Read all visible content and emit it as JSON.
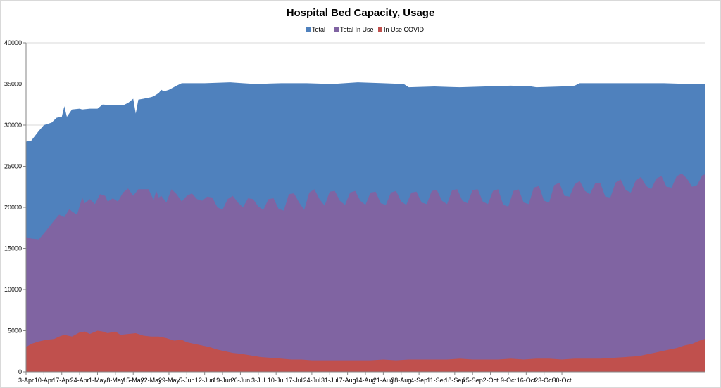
{
  "chart_data": {
    "type": "area",
    "title": "Hospital Bed Capacity, Usage",
    "xlabel": "",
    "ylabel": "",
    "ylim": [
      0,
      40000
    ],
    "yticks": [
      0,
      5000,
      10000,
      15000,
      20000,
      25000,
      30000,
      35000,
      40000
    ],
    "grid": "horizontal",
    "legend_position": "top-center",
    "x_tick_labels": [
      "3-Apr",
      "10-Apr",
      "17-Apr",
      "24-Apr",
      "1-May",
      "8-May",
      "15-May",
      "22-May",
      "29-May",
      "5-Jun",
      "12-Jun",
      "19-Jun",
      "26-Jun",
      "3-Jul",
      "10-Jul",
      "17-Jul",
      "24-Jul",
      "31-Jul",
      "7-Aug",
      "14-Aug",
      "21-Aug",
      "28-Aug",
      "4-Sep",
      "11-Sep",
      "18-Sep",
      "25-Sep",
      "2-Oct",
      "9-Oct",
      "16-Oct",
      "23-Oct",
      "30-Oct"
    ],
    "series": [
      {
        "name": "Total",
        "color": "#4f81bd",
        "points": [
          [
            0,
            28000
          ],
          [
            2,
            28100
          ],
          [
            5,
            29300
          ],
          [
            7,
            30000
          ],
          [
            10,
            30300
          ],
          [
            12,
            30900
          ],
          [
            14,
            31000
          ],
          [
            15,
            32300
          ],
          [
            16,
            31000
          ],
          [
            18,
            31900
          ],
          [
            21,
            32000
          ],
          [
            22,
            31900
          ],
          [
            25,
            32000
          ],
          [
            28,
            32000
          ],
          [
            30,
            32500
          ],
          [
            35,
            32400
          ],
          [
            38,
            32400
          ],
          [
            40,
            32700
          ],
          [
            42,
            33200
          ],
          [
            43,
            31400
          ],
          [
            44,
            33100
          ],
          [
            46,
            33200
          ],
          [
            49,
            33400
          ],
          [
            50,
            33500
          ],
          [
            52,
            33900
          ],
          [
            53,
            34300
          ],
          [
            54,
            34100
          ],
          [
            56,
            34300
          ],
          [
            59,
            34800
          ],
          [
            61,
            35100
          ],
          [
            63,
            35100
          ],
          [
            70,
            35100
          ],
          [
            80,
            35200
          ],
          [
            85,
            35100
          ],
          [
            90,
            35000
          ],
          [
            100,
            35100
          ],
          [
            110,
            35100
          ],
          [
            120,
            35000
          ],
          [
            130,
            35200
          ],
          [
            140,
            35100
          ],
          [
            148,
            35000
          ],
          [
            150,
            34600
          ],
          [
            160,
            34700
          ],
          [
            170,
            34600
          ],
          [
            180,
            34700
          ],
          [
            190,
            34800
          ],
          [
            198,
            34700
          ],
          [
            200,
            34600
          ],
          [
            210,
            34700
          ],
          [
            215,
            34800
          ],
          [
            217,
            35100
          ],
          [
            230,
            35100
          ],
          [
            240,
            35100
          ],
          [
            250,
            35100
          ],
          [
            260,
            35000
          ],
          [
            266,
            35000
          ]
        ]
      },
      {
        "name": "Total In Use",
        "color": "#8064a2",
        "points": [
          [
            0,
            16400
          ],
          [
            2,
            16200
          ],
          [
            5,
            16100
          ],
          [
            8,
            17200
          ],
          [
            11,
            18400
          ],
          [
            13,
            19100
          ],
          [
            15,
            18800
          ],
          [
            17,
            19800
          ],
          [
            18,
            19500
          ],
          [
            20,
            19100
          ],
          [
            22,
            21200
          ],
          [
            23,
            20500
          ],
          [
            25,
            21000
          ],
          [
            27,
            20400
          ],
          [
            29,
            21600
          ],
          [
            31,
            21400
          ],
          [
            32,
            20700
          ],
          [
            34,
            21100
          ],
          [
            36,
            20700
          ],
          [
            38,
            21800
          ],
          [
            40,
            22300
          ],
          [
            42,
            21400
          ],
          [
            44,
            22200
          ],
          [
            48,
            22200
          ],
          [
            50,
            20900
          ],
          [
            51,
            22000
          ],
          [
            52,
            21200
          ],
          [
            53,
            21400
          ],
          [
            55,
            20600
          ],
          [
            57,
            22200
          ],
          [
            59,
            21600
          ],
          [
            61,
            20700
          ],
          [
            63,
            21400
          ],
          [
            65,
            21700
          ],
          [
            67,
            21000
          ],
          [
            69,
            20800
          ],
          [
            71,
            21300
          ],
          [
            73,
            21200
          ],
          [
            75,
            20000
          ],
          [
            77,
            19700
          ],
          [
            79,
            21000
          ],
          [
            81,
            21400
          ],
          [
            83,
            20600
          ],
          [
            85,
            20000
          ],
          [
            87,
            21100
          ],
          [
            89,
            21000
          ],
          [
            91,
            20100
          ],
          [
            93,
            19700
          ],
          [
            95,
            21000
          ],
          [
            97,
            21100
          ],
          [
            99,
            19800
          ],
          [
            101,
            19600
          ],
          [
            103,
            21600
          ],
          [
            105,
            21700
          ],
          [
            107,
            20600
          ],
          [
            109,
            19700
          ],
          [
            111,
            21800
          ],
          [
            113,
            22200
          ],
          [
            115,
            21000
          ],
          [
            117,
            20200
          ],
          [
            119,
            21900
          ],
          [
            121,
            22000
          ],
          [
            123,
            20800
          ],
          [
            125,
            20300
          ],
          [
            127,
            21800
          ],
          [
            129,
            22000
          ],
          [
            131,
            20800
          ],
          [
            133,
            20300
          ],
          [
            135,
            21800
          ],
          [
            137,
            21900
          ],
          [
            139,
            20500
          ],
          [
            141,
            20300
          ],
          [
            143,
            21800
          ],
          [
            145,
            22000
          ],
          [
            147,
            20700
          ],
          [
            149,
            20300
          ],
          [
            151,
            21800
          ],
          [
            153,
            21900
          ],
          [
            155,
            20600
          ],
          [
            157,
            20400
          ],
          [
            159,
            22000
          ],
          [
            161,
            22100
          ],
          [
            163,
            20800
          ],
          [
            165,
            20400
          ],
          [
            167,
            22100
          ],
          [
            169,
            22200
          ],
          [
            171,
            20800
          ],
          [
            173,
            20500
          ],
          [
            175,
            22100
          ],
          [
            177,
            22200
          ],
          [
            179,
            20700
          ],
          [
            181,
            20400
          ],
          [
            183,
            22000
          ],
          [
            185,
            22200
          ],
          [
            187,
            20300
          ],
          [
            189,
            20100
          ],
          [
            191,
            22000
          ],
          [
            193,
            22200
          ],
          [
            195,
            20600
          ],
          [
            197,
            20400
          ],
          [
            199,
            22400
          ],
          [
            201,
            22600
          ],
          [
            203,
            20800
          ],
          [
            205,
            20600
          ],
          [
            207,
            22700
          ],
          [
            209,
            23000
          ],
          [
            211,
            21400
          ],
          [
            213,
            21300
          ],
          [
            215,
            22800
          ],
          [
            217,
            23200
          ],
          [
            219,
            22000
          ],
          [
            221,
            21600
          ],
          [
            223,
            22900
          ],
          [
            225,
            23000
          ],
          [
            227,
            21300
          ],
          [
            229,
            21200
          ],
          [
            231,
            23000
          ],
          [
            233,
            23400
          ],
          [
            235,
            22100
          ],
          [
            237,
            21800
          ],
          [
            239,
            23300
          ],
          [
            241,
            23700
          ],
          [
            243,
            22600
          ],
          [
            245,
            22200
          ],
          [
            247,
            23500
          ],
          [
            249,
            23800
          ],
          [
            251,
            22500
          ],
          [
            253,
            22400
          ],
          [
            255,
            23800
          ],
          [
            257,
            24100
          ],
          [
            259,
            23500
          ],
          [
            261,
            22500
          ],
          [
            263,
            22700
          ],
          [
            265,
            23900
          ],
          [
            266,
            24000
          ]
        ]
      },
      {
        "name": "In Use COVID",
        "color": "#c0504d",
        "points": [
          [
            0,
            3000
          ],
          [
            2,
            3400
          ],
          [
            5,
            3700
          ],
          [
            8,
            3900
          ],
          [
            11,
            4000
          ],
          [
            13,
            4300
          ],
          [
            15,
            4500
          ],
          [
            18,
            4300
          ],
          [
            21,
            4800
          ],
          [
            23,
            4900
          ],
          [
            25,
            4600
          ],
          [
            28,
            5000
          ],
          [
            30,
            4900
          ],
          [
            32,
            4700
          ],
          [
            35,
            4900
          ],
          [
            37,
            4500
          ],
          [
            40,
            4600
          ],
          [
            43,
            4700
          ],
          [
            46,
            4400
          ],
          [
            49,
            4300
          ],
          [
            52,
            4300
          ],
          [
            55,
            4100
          ],
          [
            58,
            3800
          ],
          [
            61,
            3900
          ],
          [
            63,
            3600
          ],
          [
            66,
            3400
          ],
          [
            69,
            3200
          ],
          [
            72,
            3000
          ],
          [
            75,
            2700
          ],
          [
            78,
            2500
          ],
          [
            81,
            2300
          ],
          [
            84,
            2200
          ],
          [
            88,
            2000
          ],
          [
            92,
            1800
          ],
          [
            96,
            1700
          ],
          [
            100,
            1600
          ],
          [
            104,
            1500
          ],
          [
            108,
            1500
          ],
          [
            112,
            1400
          ],
          [
            116,
            1400
          ],
          [
            120,
            1400
          ],
          [
            125,
            1400
          ],
          [
            130,
            1400
          ],
          [
            135,
            1400
          ],
          [
            140,
            1500
          ],
          [
            145,
            1400
          ],
          [
            150,
            1500
          ],
          [
            155,
            1500
          ],
          [
            160,
            1500
          ],
          [
            165,
            1500
          ],
          [
            170,
            1600
          ],
          [
            175,
            1500
          ],
          [
            180,
            1500
          ],
          [
            185,
            1500
          ],
          [
            190,
            1600
          ],
          [
            195,
            1500
          ],
          [
            200,
            1600
          ],
          [
            205,
            1600
          ],
          [
            210,
            1500
          ],
          [
            215,
            1600
          ],
          [
            220,
            1600
          ],
          [
            225,
            1600
          ],
          [
            230,
            1700
          ],
          [
            235,
            1800
          ],
          [
            240,
            1900
          ],
          [
            243,
            2100
          ],
          [
            246,
            2300
          ],
          [
            249,
            2500
          ],
          [
            252,
            2700
          ],
          [
            255,
            2900
          ],
          [
            258,
            3200
          ],
          [
            261,
            3400
          ],
          [
            264,
            3800
          ],
          [
            266,
            4000
          ]
        ]
      }
    ]
  }
}
